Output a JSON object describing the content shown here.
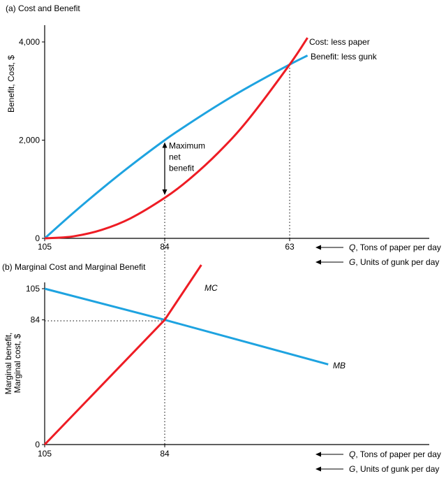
{
  "chart_data": [
    {
      "type": "line",
      "title": "(a) Cost and Benefit",
      "ylabel": "Benefit, Cost, $",
      "x_axis_labels": [
        {
          "var": "Q",
          "text": ", Tons of paper per day"
        },
        {
          "var": "G",
          "text": ", Units of gunk per day"
        }
      ],
      "x_ticks": [
        105,
        84,
        63
      ],
      "y_ticks": [
        0,
        2000,
        4000
      ],
      "y_tick_labels": [
        "0",
        "2,000",
        "4,000"
      ],
      "ylim": [
        0,
        4300
      ],
      "x_reversed": true,
      "grid": false,
      "series": [
        {
          "name": "Cost: less paper",
          "color": "#ee1c24",
          "x": [
            105,
            100,
            95,
            90,
            84,
            80,
            75,
            70,
            63,
            60
          ],
          "y": [
            0,
            40,
            174,
            407,
            825,
            1190,
            1745,
            2412,
            3540,
            4085
          ]
        },
        {
          "name": "Benefit: less gunk",
          "color": "#1ea3e0",
          "x": [
            105,
            100,
            95,
            90,
            84,
            80,
            75,
            70,
            63,
            60
          ],
          "y": [
            0,
            518,
            1010,
            1476,
            2000,
            2329,
            2717,
            3078,
            3540,
            3723
          ]
        }
      ],
      "annotation": {
        "lines": [
          "Maximum",
          "net",
          "benefit"
        ],
        "x": 84,
        "y_from": 825,
        "y_to": 2000
      }
    },
    {
      "type": "line",
      "title": "(b) Marginal Cost and Marginal Benefit",
      "ylabel_lines": [
        "Marginal benefit,",
        "Marginal cost, $"
      ],
      "x_axis_labels": [
        {
          "var": "Q",
          "text": ", Tons of paper per day"
        },
        {
          "var": "G",
          "text": ", Units of gunk per day"
        }
      ],
      "x_ticks": [
        105,
        84
      ],
      "y_ticks": [
        0,
        84,
        105
      ],
      "y_tick_labels": [
        "0",
        "84",
        "105"
      ],
      "x_reversed": true,
      "grid": false,
      "series": [
        {
          "name": "MC",
          "color": "#ee1c24",
          "x": [
            105,
            84,
            77.6
          ],
          "y": [
            0,
            84,
            121
          ]
        },
        {
          "name": "MB",
          "color": "#1ea3e0",
          "x": [
            105,
            84,
            55.4
          ],
          "y": [
            105,
            84,
            54
          ]
        }
      ]
    }
  ]
}
